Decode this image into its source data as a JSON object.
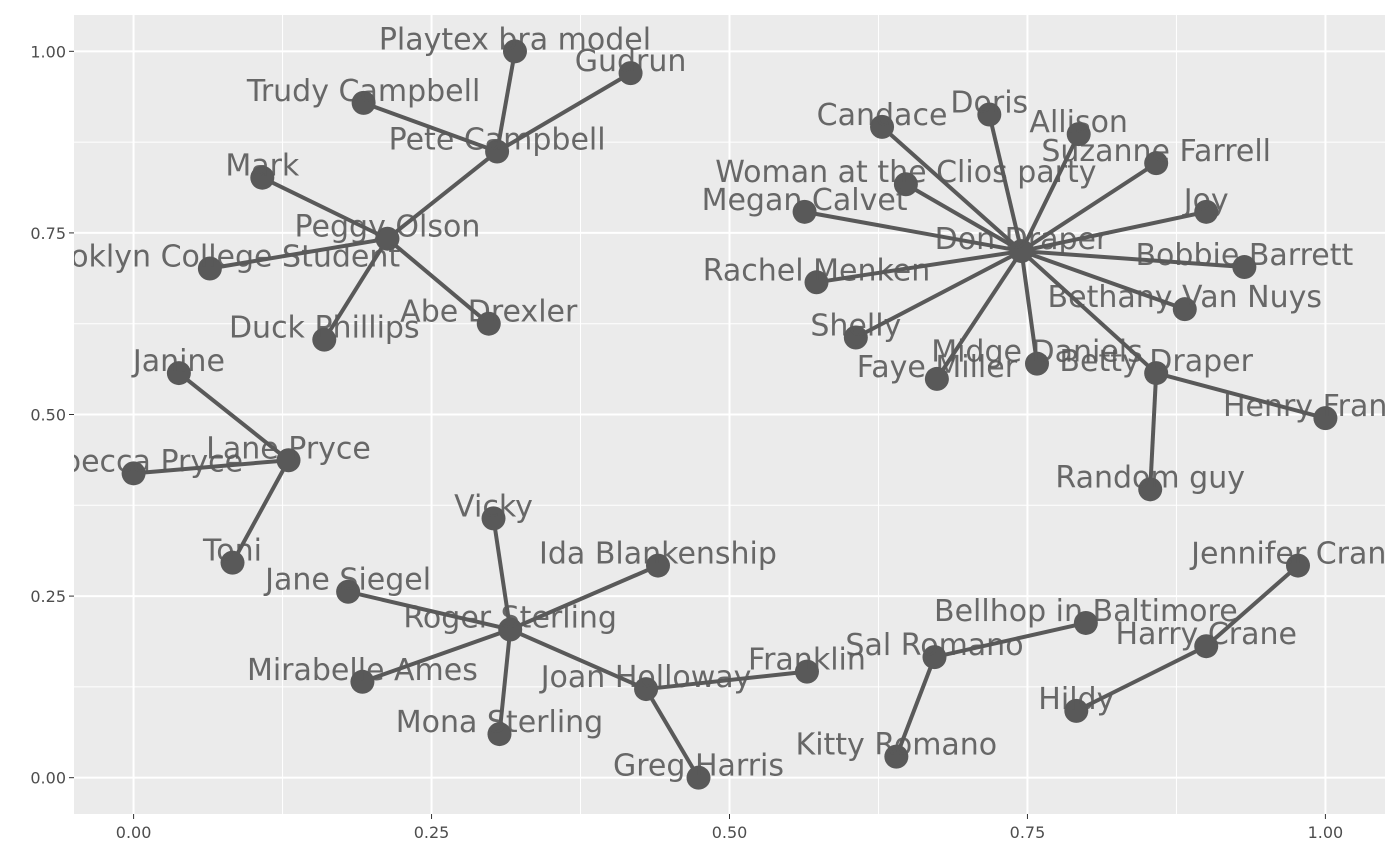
{
  "chart_data": {
    "type": "network",
    "title": "",
    "xlabel": "",
    "ylabel": "",
    "xlim": [
      -0.05,
      1.05
    ],
    "ylim": [
      -0.05,
      1.05
    ],
    "x_ticks": [
      0,
      0.25,
      0.5,
      0.75,
      1
    ],
    "x_tick_labels": [
      "0.00",
      "0.25",
      "0.50",
      "0.75",
      "1.00"
    ],
    "y_ticks": [
      0,
      0.25,
      0.5,
      0.75,
      1
    ],
    "y_tick_labels": [
      "0.00",
      "0.25",
      "0.50",
      "0.75",
      "1.00"
    ],
    "grid": true,
    "colors": {
      "panel": "#ebebeb",
      "grid": "#ffffff",
      "node": "#595959",
      "edge": "#595959",
      "label": "#595959"
    },
    "nodes": [
      {
        "name": "Don Draper",
        "x": 0.745,
        "y": 0.725
      },
      {
        "name": "Candace",
        "x": 0.628,
        "y": 0.896
      },
      {
        "name": "Doris",
        "x": 0.718,
        "y": 0.913
      },
      {
        "name": "Allison",
        "x": 0.793,
        "y": 0.886
      },
      {
        "name": "Suzanne Farrell",
        "x": 0.858,
        "y": 0.846
      },
      {
        "name": "Woman at the Clios party",
        "x": 0.648,
        "y": 0.817
      },
      {
        "name": "Joy",
        "x": 0.9,
        "y": 0.779
      },
      {
        "name": "Megan Calvet",
        "x": 0.563,
        "y": 0.779
      },
      {
        "name": "Bobbie Barrett",
        "x": 0.932,
        "y": 0.703
      },
      {
        "name": "Rachel Menken",
        "x": 0.573,
        "y": 0.682
      },
      {
        "name": "Bethany Van Nuys",
        "x": 0.882,
        "y": 0.645
      },
      {
        "name": "Shelly",
        "x": 0.606,
        "y": 0.606
      },
      {
        "name": "Midge Daniels",
        "x": 0.758,
        "y": 0.57
      },
      {
        "name": "Faye Miller",
        "x": 0.674,
        "y": 0.549
      },
      {
        "name": "Betty Draper",
        "x": 0.858,
        "y": 0.557
      },
      {
        "name": "Henry Francis",
        "x": 1.0,
        "y": 0.495
      },
      {
        "name": "Random guy",
        "x": 0.853,
        "y": 0.397
      },
      {
        "name": "Peggy Olson",
        "x": 0.213,
        "y": 0.742
      },
      {
        "name": "Pete Campbell",
        "x": 0.305,
        "y": 0.862
      },
      {
        "name": "Playtex bra model",
        "x": 0.32,
        "y": 1.0
      },
      {
        "name": "Gudrun",
        "x": 0.417,
        "y": 0.97
      },
      {
        "name": "Trudy Campbell",
        "x": 0.193,
        "y": 0.929
      },
      {
        "name": "Mark",
        "x": 0.108,
        "y": 0.826
      },
      {
        "name": "Brooklyn College Student",
        "x": 0.064,
        "y": 0.701
      },
      {
        "name": "Abe Drexler",
        "x": 0.298,
        "y": 0.625
      },
      {
        "name": "Duck Phillips",
        "x": 0.16,
        "y": 0.603
      },
      {
        "name": "Janine",
        "x": 0.038,
        "y": 0.557
      },
      {
        "name": "Lane Pryce",
        "x": 0.13,
        "y": 0.437
      },
      {
        "name": "Rebecca Pryce",
        "x": 0.0,
        "y": 0.419
      },
      {
        "name": "Toni",
        "x": 0.083,
        "y": 0.296
      },
      {
        "name": "Roger Sterling",
        "x": 0.316,
        "y": 0.204
      },
      {
        "name": "Vicky",
        "x": 0.302,
        "y": 0.357
      },
      {
        "name": "Ida Blankenship",
        "x": 0.44,
        "y": 0.292
      },
      {
        "name": "Jane Siegel",
        "x": 0.18,
        "y": 0.256
      },
      {
        "name": "Mirabelle Ames",
        "x": 0.192,
        "y": 0.132
      },
      {
        "name": "Mona Sterling",
        "x": 0.307,
        "y": 0.06
      },
      {
        "name": "Joan Holloway",
        "x": 0.43,
        "y": 0.122
      },
      {
        "name": "Greg Harris",
        "x": 0.474,
        "y": 0.0
      },
      {
        "name": "Franklin",
        "x": 0.565,
        "y": 0.146
      },
      {
        "name": "Sal Romano",
        "x": 0.672,
        "y": 0.166
      },
      {
        "name": "Kitty Romano",
        "x": 0.64,
        "y": 0.029
      },
      {
        "name": "Bellhop in Baltimore",
        "x": 0.799,
        "y": 0.213
      },
      {
        "name": "Harry Crane",
        "x": 0.9,
        "y": 0.181
      },
      {
        "name": "Jennifer Crane",
        "x": 0.977,
        "y": 0.292
      },
      {
        "name": "Hildy",
        "x": 0.791,
        "y": 0.092
      }
    ],
    "edges": [
      [
        "Don Draper",
        "Candace"
      ],
      [
        "Don Draper",
        "Doris"
      ],
      [
        "Don Draper",
        "Allison"
      ],
      [
        "Don Draper",
        "Suzanne Farrell"
      ],
      [
        "Don Draper",
        "Woman at the Clios party"
      ],
      [
        "Don Draper",
        "Joy"
      ],
      [
        "Don Draper",
        "Megan Calvet"
      ],
      [
        "Don Draper",
        "Bobbie Barrett"
      ],
      [
        "Don Draper",
        "Rachel Menken"
      ],
      [
        "Don Draper",
        "Bethany Van Nuys"
      ],
      [
        "Don Draper",
        "Shelly"
      ],
      [
        "Don Draper",
        "Midge Daniels"
      ],
      [
        "Don Draper",
        "Faye Miller"
      ],
      [
        "Don Draper",
        "Betty Draper"
      ],
      [
        "Betty Draper",
        "Henry Francis"
      ],
      [
        "Betty Draper",
        "Random guy"
      ],
      [
        "Peggy Olson",
        "Pete Campbell"
      ],
      [
        "Pete Campbell",
        "Playtex bra model"
      ],
      [
        "Pete Campbell",
        "Gudrun"
      ],
      [
        "Pete Campbell",
        "Trudy Campbell"
      ],
      [
        "Peggy Olson",
        "Mark"
      ],
      [
        "Peggy Olson",
        "Brooklyn College Student"
      ],
      [
        "Peggy Olson",
        "Abe Drexler"
      ],
      [
        "Peggy Olson",
        "Duck Phillips"
      ],
      [
        "Janine",
        "Lane Pryce"
      ],
      [
        "Lane Pryce",
        "Rebecca Pryce"
      ],
      [
        "Lane Pryce",
        "Toni"
      ],
      [
        "Roger Sterling",
        "Vicky"
      ],
      [
        "Roger Sterling",
        "Ida Blankenship"
      ],
      [
        "Roger Sterling",
        "Jane Siegel"
      ],
      [
        "Roger Sterling",
        "Mirabelle Ames"
      ],
      [
        "Roger Sterling",
        "Mona Sterling"
      ],
      [
        "Roger Sterling",
        "Joan Holloway"
      ],
      [
        "Joan Holloway",
        "Greg Harris"
      ],
      [
        "Joan Holloway",
        "Franklin"
      ],
      [
        "Sal Romano",
        "Kitty Romano"
      ],
      [
        "Sal Romano",
        "Bellhop in Baltimore"
      ],
      [
        "Harry Crane",
        "Jennifer Crane"
      ],
      [
        "Harry Crane",
        "Hildy"
      ]
    ]
  }
}
